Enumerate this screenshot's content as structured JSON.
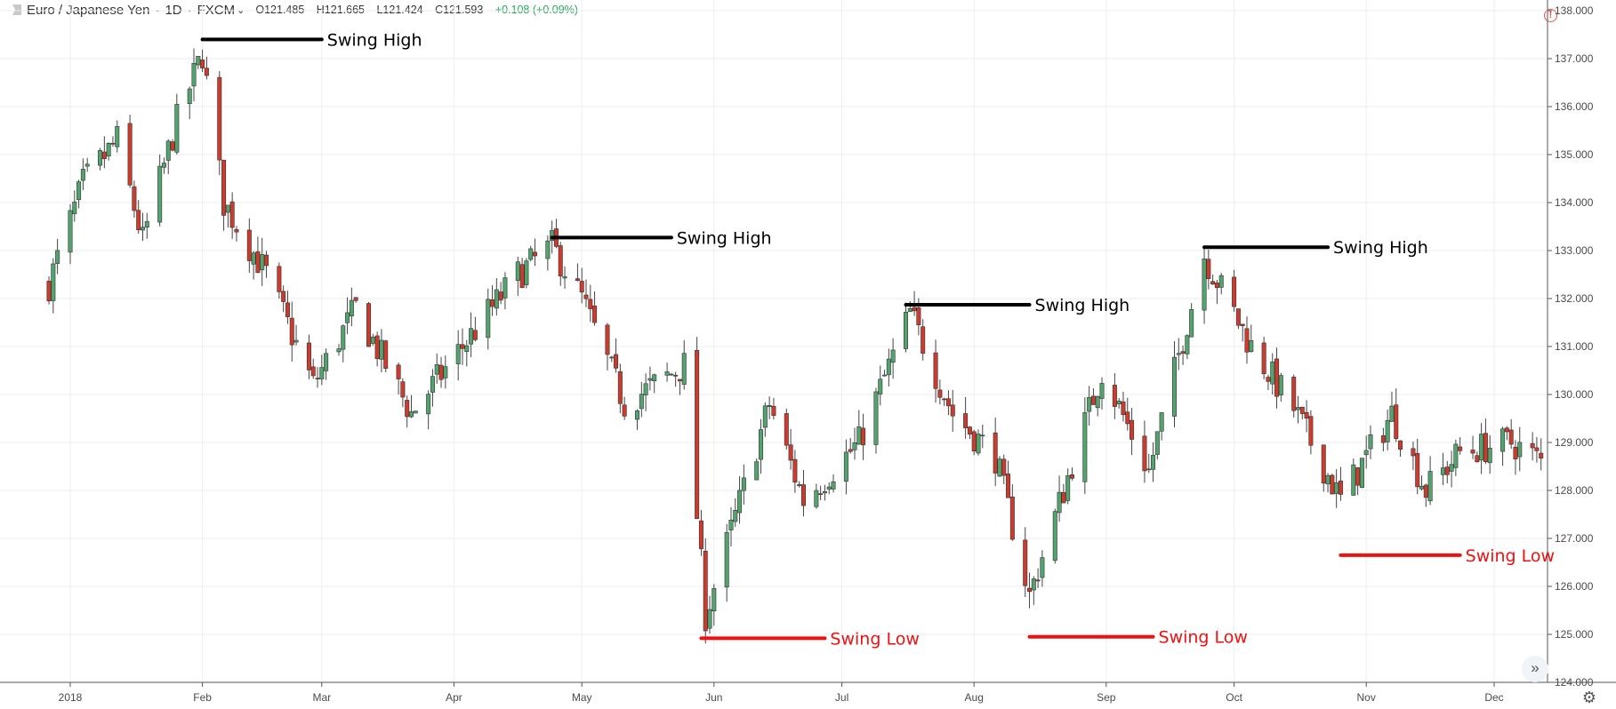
{
  "header": {
    "symbol": "Euro / Japanese Yen",
    "interval": "1D",
    "source": "FXCM",
    "open": "O121.485",
    "high": "H121.665",
    "low": "L121.424",
    "close": "C121.593",
    "change": "+0.108 (+0.09%)"
  },
  "icons": {
    "symbol_marker": "flag-icon",
    "warning": "alert-icon",
    "scroll": "double-chevron-right-icon",
    "settings": "gear-icon"
  },
  "colors": {
    "up": "#53a36f",
    "down": "#cc3c2e",
    "high_line": "#000000",
    "low_line": "#ee1111",
    "grid": "#eceef2"
  },
  "chart_data": {
    "type": "candlestick",
    "title": "",
    "y_axis": {
      "min": 124.0,
      "max": 138.0,
      "step": 1.0,
      "position": "right",
      "ticks": [
        "124.000",
        "125.000",
        "126.000",
        "127.000",
        "128.000",
        "129.000",
        "130.000",
        "131.000",
        "132.000",
        "133.000",
        "134.000",
        "135.000",
        "136.000",
        "137.000",
        "138.000"
      ]
    },
    "x_axis": {
      "ticks": [
        {
          "label": "2018",
          "date": "2018-01-01"
        },
        {
          "label": "Feb",
          "date": "2018-02-01"
        },
        {
          "label": "Mar",
          "date": "2018-03-01"
        },
        {
          "label": "Apr",
          "date": "2018-04-01"
        },
        {
          "label": "May",
          "date": "2018-05-01"
        },
        {
          "label": "Jun",
          "date": "2018-06-01"
        },
        {
          "label": "Jul",
          "date": "2018-07-01"
        },
        {
          "label": "Aug",
          "date": "2018-08-01"
        },
        {
          "label": "Sep",
          "date": "2018-09-01"
        },
        {
          "label": "Oct",
          "date": "2018-10-01"
        },
        {
          "label": "Nov",
          "date": "2018-11-01"
        },
        {
          "label": "Dec",
          "date": "2018-12-01"
        }
      ]
    },
    "grid": true,
    "series": [
      {
        "type": "close-path",
        "date_range": [
          "2017-12-27",
          "2018-12-28"
        ],
        "anchors": [
          {
            "date": "2017-12-27",
            "close": 132.3
          },
          {
            "date": "2018-01-04",
            "close": 134.4
          },
          {
            "date": "2018-01-12",
            "close": 135.3
          },
          {
            "date": "2018-01-18",
            "close": 133.2
          },
          {
            "date": "2018-01-26",
            "close": 135.7
          },
          {
            "date": "2018-02-01",
            "close": 137.1
          },
          {
            "date": "2018-02-06",
            "close": 134.0
          },
          {
            "date": "2018-02-16",
            "close": 132.5
          },
          {
            "date": "2018-02-27",
            "close": 130.2
          },
          {
            "date": "2018-03-09",
            "close": 131.8
          },
          {
            "date": "2018-03-22",
            "close": 129.6
          },
          {
            "date": "2018-04-03",
            "close": 131.0
          },
          {
            "date": "2018-04-16",
            "close": 132.5
          },
          {
            "date": "2018-04-24",
            "close": 133.1
          },
          {
            "date": "2018-05-01",
            "close": 132.0
          },
          {
            "date": "2018-05-11",
            "close": 129.8
          },
          {
            "date": "2018-05-25",
            "close": 130.6
          },
          {
            "date": "2018-05-30",
            "close": 125.4
          },
          {
            "date": "2018-06-14",
            "close": 129.8
          },
          {
            "date": "2018-06-22",
            "close": 127.8
          },
          {
            "date": "2018-07-05",
            "close": 129.0
          },
          {
            "date": "2018-07-17",
            "close": 131.7
          },
          {
            "date": "2018-07-27",
            "close": 129.6
          },
          {
            "date": "2018-08-06",
            "close": 128.7
          },
          {
            "date": "2018-08-14",
            "close": 125.8
          },
          {
            "date": "2018-08-22",
            "close": 128.0
          },
          {
            "date": "2018-08-31",
            "close": 130.5
          },
          {
            "date": "2018-09-11",
            "close": 128.4
          },
          {
            "date": "2018-09-24",
            "close": 132.9
          },
          {
            "date": "2018-10-05",
            "close": 131.0
          },
          {
            "date": "2018-10-15",
            "close": 129.7
          },
          {
            "date": "2018-10-26",
            "close": 127.8
          },
          {
            "date": "2018-11-07",
            "close": 129.6
          },
          {
            "date": "2018-11-15",
            "close": 128.0
          },
          {
            "date": "2018-11-23",
            "close": 128.8
          },
          {
            "date": "2018-12-05",
            "close": 129.0
          },
          {
            "date": "2018-12-14",
            "close": 128.5
          },
          {
            "date": "2018-12-28",
            "close": 127.9
          }
        ]
      }
    ],
    "annotations": [
      {
        "label": "Swing High",
        "kind": "high",
        "price": 137.4,
        "start": "2018-02-01",
        "end": "2018-03-01"
      },
      {
        "label": "Swing High",
        "kind": "high",
        "price": 133.27,
        "start": "2018-04-24",
        "end": "2018-05-22"
      },
      {
        "label": "Swing High",
        "kind": "high",
        "price": 131.87,
        "start": "2018-07-16",
        "end": "2018-08-14"
      },
      {
        "label": "Swing High",
        "kind": "high",
        "price": 133.07,
        "start": "2018-09-24",
        "end": "2018-10-23"
      },
      {
        "label": "Swing Low",
        "kind": "low",
        "price": 124.92,
        "start": "2018-05-29",
        "end": "2018-06-27"
      },
      {
        "label": "Swing Low",
        "kind": "low",
        "price": 124.95,
        "start": "2018-08-14",
        "end": "2018-09-12"
      },
      {
        "label": "Swing Low",
        "kind": "low",
        "price": 126.65,
        "start": "2018-10-26",
        "end": "2018-11-23"
      }
    ]
  }
}
